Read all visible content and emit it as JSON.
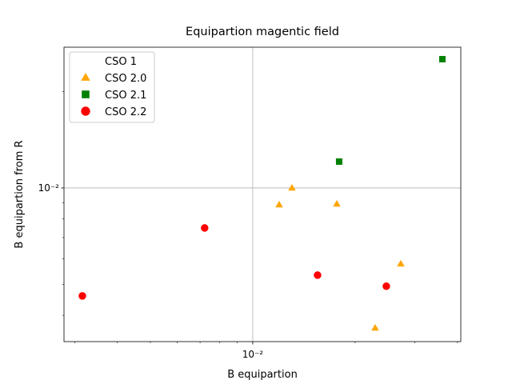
{
  "chart_data": {
    "type": "scatter",
    "title": "Equipartion magentic field",
    "x_label": "B equipartion",
    "y_label": "B equipartion from R",
    "log_x": true,
    "log_y": true,
    "grid": true,
    "legend_loc": "upper left",
    "xlim": [
      0.002786,
      0.04091
    ],
    "ylim": [
      0.00331,
      0.02754
    ],
    "xticks": [
      {
        "value": 0.01,
        "label": "10⁻²"
      }
    ],
    "yticks": [
      {
        "value": 0.01,
        "label": "10⁻²"
      }
    ],
    "xminorticks": [
      0.003,
      0.004,
      0.005,
      0.006,
      0.007,
      0.008,
      0.009,
      0.02,
      0.03,
      0.04
    ],
    "yminorticks": [
      0.004,
      0.005,
      0.006,
      0.007,
      0.008,
      0.009,
      0.02
    ],
    "series": [
      {
        "name": "CSO 1",
        "color": "#1f77b4",
        "marker": "circle",
        "x": [],
        "values": []
      },
      {
        "name": "CSO 2.0",
        "color": "#ffa500",
        "marker": "triangle",
        "x": [
          0.01304,
          0.01196,
          0.01767,
          0.02725,
          0.02291
        ],
        "values": [
          0.01,
          0.00886,
          0.00891,
          0.00579,
          0.00365
        ]
      },
      {
        "name": "CSO 2.1",
        "color": "#008000",
        "marker": "square",
        "x": [
          0.01795,
          0.03611
        ],
        "values": [
          0.01209,
          0.02527
        ]
      },
      {
        "name": "CSO 2.2",
        "color": "#ff0000",
        "marker": "circle",
        "x": [
          0.003155,
          0.00722,
          0.01551,
          0.02471
        ],
        "values": [
          0.0046,
          0.0075,
          0.00534,
          0.00493
        ]
      }
    ]
  }
}
